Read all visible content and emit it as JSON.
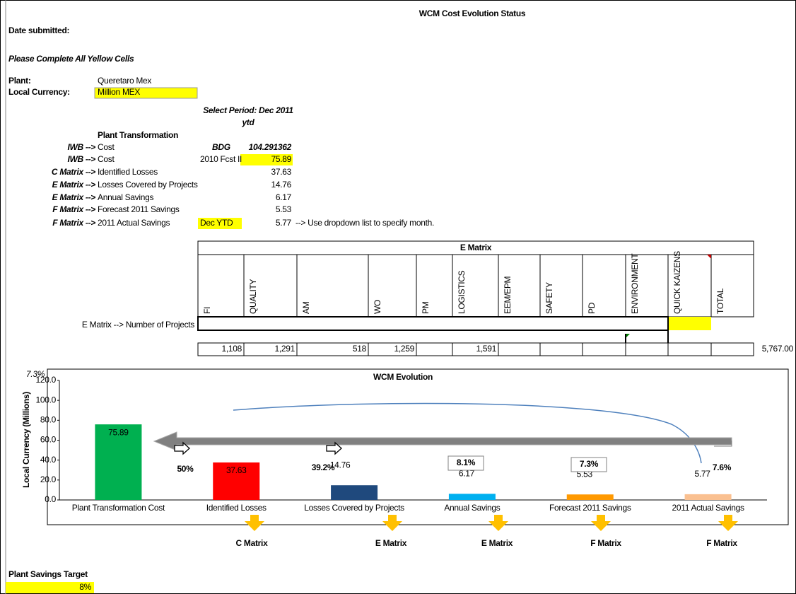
{
  "title": "WCM Cost Evolution Status",
  "date_label": "Date submitted:",
  "instruction": "Please Complete All Yellow Cells",
  "plant": {
    "label": "Plant:",
    "value": "Queretaro Mex"
  },
  "currency": {
    "label": "Local Currency:",
    "value": "Million MEX"
  },
  "period": {
    "label": "Select Period: Dec 2011",
    "sub": "ytd"
  },
  "section": "Plant Transformation",
  "rows": [
    {
      "matrix": "IWB -->",
      "label": "Cost",
      "extra": "BDG",
      "value": 104.291362
    },
    {
      "matrix": "IWB -->",
      "label": "Cost",
      "extra": "2010 Fcst II",
      "value": 75.89
    },
    {
      "matrix": "C Matrix -->",
      "label": "Identified Losses",
      "value": 37.63
    },
    {
      "matrix": "E Matrix -->",
      "label": "Losses Covered by Projects",
      "value": 14.76
    },
    {
      "matrix": "E Matrix -->",
      "label": "Annual Savings",
      "value": 6.17
    },
    {
      "matrix": "F Matrix -->",
      "label": "Forecast 2011 Savings",
      "value": 5.53
    },
    {
      "matrix": "F Matrix -->",
      "label": "2011 Actual Savings",
      "extra": "Dec YTD",
      "value": 5.77,
      "note": "--> Use dropdown list to specify month."
    }
  ],
  "ematrix": {
    "title": "E Matrix",
    "columns": [
      "FI",
      "QUALITY",
      "AM",
      "WO",
      "PM",
      "LOGISTICS",
      "EEM/EPM",
      "SAFETY",
      "PD",
      "ENVIRONMENT",
      "QUICK KAIZENS",
      "TOTAL"
    ],
    "row_label": "E Matrix --> Number of Projects",
    "totals": [
      "1,108",
      "1,291",
      "518",
      "1,259",
      null,
      "1,591",
      null,
      null,
      null,
      null,
      null,
      "5,767.00"
    ]
  },
  "chart": {
    "type": "bar",
    "title": "WCM Evolution",
    "y_label": "Local Currency (Millions)",
    "corner_label": "7.3%",
    "categories": [
      "Plant Transformation Cost",
      "Identified Losses",
      "Losses Covered by Projects",
      "Annual Savings",
      "Forecast 2011 Savings",
      "2011 Actual Savings"
    ],
    "values": [
      75.89,
      37.63,
      14.76,
      6.17,
      5.53,
      5.77
    ],
    "colors": [
      "#00b050",
      "#ff0000",
      "#1f497d",
      "#00b0f0",
      "#ff9900",
      "#fac090"
    ],
    "ylim": [
      0,
      120
    ],
    "yticks": [
      {
        "value": 0,
        "label": "0.0"
      },
      {
        "value": 20,
        "label": "20.0"
      },
      {
        "value": 40,
        "label": "40.0"
      },
      {
        "value": 60,
        "label": "60.0"
      },
      {
        "value": 80,
        "label": "80.0"
      },
      {
        "value": 100,
        "label": "100.0"
      },
      {
        "value": 120,
        "label": "120.0"
      }
    ],
    "percent_labels": [
      "50%",
      "39.2%",
      "8.1%",
      "7.3%",
      "7.6%"
    ],
    "matrix_labels": [
      "C Matrix",
      "E Matrix",
      "E Matrix",
      "F Matrix",
      "F Matrix"
    ]
  },
  "target": {
    "label": "Plant Savings Target",
    "value": "8%"
  }
}
